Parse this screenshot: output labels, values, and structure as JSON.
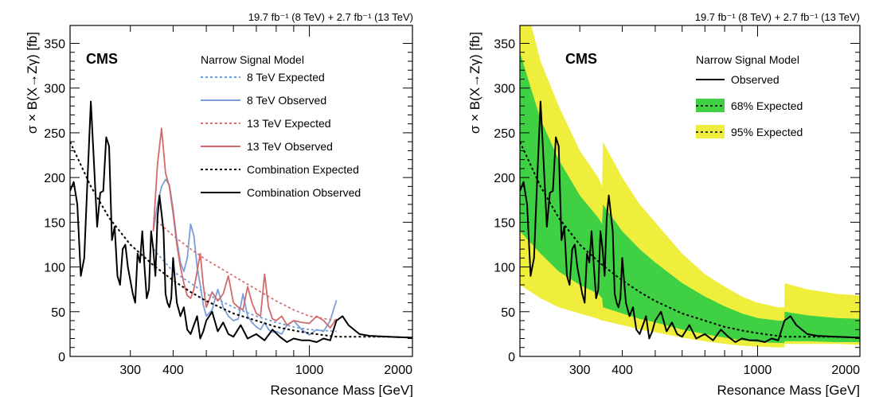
{
  "chart_data": [
    {
      "type": "line",
      "lumi": "19.7 fb⁻¹ (8 TeV) + 2.7 fb⁻¹ (13 TeV)",
      "experiment": "CMS",
      "xlabel": "Resonance Mass [GeV]",
      "ylabel": "σ × B(X→Zγ) [fb]",
      "xscale": "log",
      "xlim": [
        200,
        2000
      ],
      "ylim": [
        0,
        370
      ],
      "xticks": [
        300,
        400,
        1000,
        2000
      ],
      "yticks": [
        0,
        50,
        100,
        150,
        200,
        250,
        300,
        350
      ],
      "legend_title": "Narrow Signal Model",
      "legend_position": "top-right",
      "series": [
        {
          "name": "8 TeV Expected",
          "color": "#6d9ed8",
          "style": "dotted",
          "x": [
            350,
            400,
            450,
            500,
            600,
            700,
            800,
            900,
            1000,
            1200
          ],
          "y": [
            120,
            95,
            82,
            70,
            55,
            45,
            38,
            33,
            30,
            28
          ]
        },
        {
          "name": "8 TeV Observed",
          "color": "#7b9fd6",
          "style": "solid",
          "x": [
            350,
            360,
            370,
            380,
            390,
            400,
            410,
            420,
            430,
            440,
            450,
            460,
            470,
            480,
            490,
            500,
            520,
            540,
            560,
            580,
            600,
            620,
            640,
            660,
            680,
            700,
            720,
            740,
            760,
            780,
            800,
            830,
            860,
            900,
            950,
            1000,
            1050,
            1100,
            1150,
            1200
          ],
          "y": [
            140,
            170,
            190,
            198,
            192,
            165,
            130,
            105,
            95,
            110,
            148,
            135,
            100,
            80,
            58,
            45,
            52,
            75,
            55,
            45,
            40,
            42,
            70,
            45,
            38,
            33,
            30,
            38,
            30,
            27,
            28,
            25,
            35,
            40,
            30,
            24,
            30,
            28,
            40,
            63
          ]
        },
        {
          "name": "13 TeV Expected",
          "color": "#d96f6f",
          "style": "dotted",
          "x": [
            350,
            400,
            450,
            500,
            600,
            700,
            800,
            900,
            1000,
            1200
          ],
          "y": [
            155,
            135,
            120,
            108,
            90,
            75,
            62,
            52,
            45,
            40
          ]
        },
        {
          "name": "13 TeV Observed",
          "color": "#d36a6a",
          "style": "solid",
          "x": [
            350,
            360,
            370,
            380,
            390,
            400,
            410,
            420,
            430,
            440,
            450,
            460,
            470,
            480,
            490,
            500,
            520,
            540,
            560,
            580,
            600,
            620,
            640,
            660,
            680,
            700,
            720,
            740,
            760,
            780,
            800,
            830,
            860,
            900,
            950,
            1000,
            1050,
            1100,
            1150,
            1200
          ],
          "y": [
            140,
            215,
            255,
            205,
            190,
            160,
            125,
            100,
            82,
            68,
            65,
            75,
            95,
            115,
            80,
            55,
            72,
            62,
            70,
            90,
            60,
            55,
            52,
            78,
            60,
            48,
            45,
            92,
            55,
            42,
            40,
            45,
            35,
            40,
            38,
            37,
            45,
            40,
            32,
            42
          ]
        },
        {
          "name": "Combination Expected",
          "color": "#000000",
          "style": "dotted",
          "x": [
            200,
            230,
            260,
            300,
            350,
            400,
            450,
            500,
            600,
            700,
            800,
            900,
            1000,
            1200,
            1400,
            1700,
            2000
          ],
          "y": [
            240,
            190,
            155,
            125,
            102,
            85,
            72,
            62,
            48,
            40,
            33,
            29,
            26,
            22,
            22,
            22,
            21
          ]
        },
        {
          "name": "Combination Observed",
          "color": "#000000",
          "style": "solid",
          "x": [
            200,
            205,
            210,
            215,
            220,
            225,
            230,
            235,
            240,
            245,
            250,
            255,
            260,
            265,
            270,
            275,
            280,
            285,
            290,
            295,
            300,
            305,
            310,
            315,
            320,
            325,
            330,
            335,
            340,
            345,
            350,
            355,
            360,
            365,
            370,
            375,
            380,
            385,
            390,
            395,
            400,
            410,
            420,
            430,
            440,
            450,
            460,
            470,
            480,
            490,
            500,
            520,
            540,
            560,
            580,
            600,
            630,
            660,
            700,
            740,
            780,
            820,
            860,
            900,
            950,
            1000,
            1050,
            1100,
            1150,
            1200,
            1250,
            1300,
            1400,
            1500,
            1700,
            2000
          ],
          "y": [
            185,
            195,
            170,
            90,
            110,
            200,
            285,
            215,
            145,
            183,
            185,
            245,
            235,
            130,
            145,
            90,
            80,
            120,
            125,
            100,
            85,
            70,
            60,
            115,
            105,
            140,
            100,
            65,
            75,
            140,
            120,
            90,
            155,
            180,
            160,
            140,
            70,
            60,
            55,
            65,
            110,
            60,
            45,
            55,
            30,
            25,
            35,
            45,
            20,
            28,
            40,
            50,
            28,
            38,
            25,
            22,
            35,
            20,
            25,
            18,
            30,
            22,
            16,
            20,
            18,
            18,
            16,
            20,
            18,
            40,
            45,
            35,
            25,
            23,
            22,
            21
          ]
        }
      ]
    },
    {
      "type": "line",
      "lumi": "19.7 fb⁻¹ (8 TeV) + 2.7 fb⁻¹ (13 TeV)",
      "experiment": "CMS",
      "xlabel": "Resonance Mass [GeV]",
      "ylabel": "σ × B(X→Zγ) [fb]",
      "xscale": "log",
      "xlim": [
        200,
        2000
      ],
      "ylim": [
        0,
        370
      ],
      "xticks": [
        300,
        400,
        1000,
        2000
      ],
      "yticks": [
        0,
        50,
        100,
        150,
        200,
        250,
        300,
        350
      ],
      "legend_title": "Narrow Signal Model",
      "legend_position": "top-right",
      "bands": [
        {
          "name": "95% Expected",
          "color": "#f0ee3c",
          "x": [
            200,
            230,
            260,
            300,
            340,
            349,
            351,
            400,
            450,
            500,
            600,
            700,
            800,
            900,
            1000,
            1150,
            1199,
            1201,
            1400,
            1700,
            2000
          ],
          "lower": [
            80,
            65,
            55,
            48,
            42,
            40,
            40,
            35,
            30,
            27,
            21,
            17,
            14,
            12,
            11,
            10,
            10,
            14,
            14,
            14,
            13
          ],
          "upper": [
            420,
            330,
            280,
            230,
            200,
            190,
            240,
            200,
            170,
            150,
            115,
            92,
            78,
            67,
            60,
            55,
            55,
            82,
            75,
            70,
            68
          ]
        },
        {
          "name": "68% Expected",
          "color": "#3fd143",
          "x": [
            200,
            230,
            260,
            300,
            340,
            349,
            351,
            400,
            450,
            500,
            600,
            700,
            800,
            900,
            1000,
            1150,
            1199,
            1201,
            1400,
            1700,
            2000
          ],
          "lower": [
            140,
            115,
            95,
            80,
            70,
            65,
            55,
            48,
            42,
            38,
            30,
            25,
            21,
            18,
            16,
            15,
            15,
            17,
            17,
            16,
            16
          ],
          "upper": [
            340,
            265,
            220,
            180,
            155,
            148,
            170,
            140,
            120,
            105,
            82,
            67,
            56,
            48,
            43,
            40,
            40,
            50,
            46,
            43,
            42
          ]
        }
      ],
      "series": [
        {
          "name": "Observed",
          "color": "#000000",
          "style": "solid",
          "x": [
            200,
            205,
            210,
            215,
            220,
            225,
            230,
            235,
            240,
            245,
            250,
            255,
            260,
            265,
            270,
            275,
            280,
            285,
            290,
            295,
            300,
            305,
            310,
            315,
            320,
            325,
            330,
            335,
            340,
            345,
            350,
            355,
            360,
            365,
            370,
            375,
            380,
            385,
            390,
            395,
            400,
            410,
            420,
            430,
            440,
            450,
            460,
            470,
            480,
            490,
            500,
            520,
            540,
            560,
            580,
            600,
            630,
            660,
            700,
            740,
            780,
            820,
            860,
            900,
            950,
            1000,
            1050,
            1100,
            1150,
            1200,
            1250,
            1300,
            1400,
            1500,
            1700,
            2000
          ],
          "y": [
            185,
            195,
            170,
            90,
            110,
            200,
            285,
            215,
            145,
            183,
            185,
            245,
            235,
            130,
            145,
            90,
            80,
            120,
            125,
            100,
            85,
            70,
            60,
            115,
            105,
            140,
            100,
            65,
            75,
            140,
            120,
            90,
            155,
            180,
            160,
            140,
            70,
            60,
            55,
            65,
            110,
            60,
            45,
            55,
            30,
            25,
            35,
            45,
            20,
            28,
            40,
            50,
            28,
            38,
            25,
            22,
            35,
            20,
            25,
            18,
            30,
            22,
            16,
            20,
            18,
            18,
            16,
            20,
            18,
            40,
            45,
            35,
            25,
            23,
            22,
            21
          ]
        },
        {
          "name": "Expected",
          "color": "#000000",
          "style": "dotted",
          "x": [
            200,
            230,
            260,
            300,
            350,
            400,
            450,
            500,
            600,
            700,
            800,
            900,
            1000,
            1200,
            1400,
            1700,
            2000
          ],
          "y": [
            240,
            190,
            155,
            125,
            102,
            85,
            72,
            62,
            48,
            40,
            33,
            29,
            26,
            22,
            22,
            22,
            21
          ]
        }
      ]
    }
  ]
}
